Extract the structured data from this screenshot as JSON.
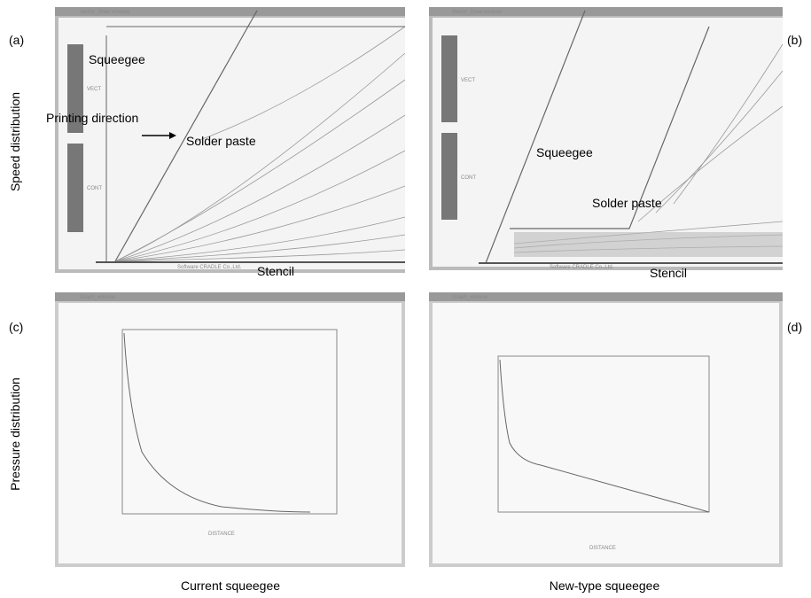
{
  "panels": [
    {
      "tag": "(a)",
      "window_title": "Vector_Draw window",
      "labels": [
        "Squeegee",
        "Printing direction",
        "Solder paste",
        "Stencil"
      ],
      "legend": [
        "VECT",
        "CONT"
      ],
      "footer": "Software CRADLE Co.,Ltd."
    },
    {
      "tag": "(b)",
      "window_title": "Vector_Draw window",
      "labels": [
        "Squeegee",
        "Solder paste",
        "Stencil"
      ],
      "legend": [
        "VECT",
        "CONT"
      ],
      "footer": "Software CRADLE Co.,Ltd."
    },
    {
      "tag": "(c)",
      "window_title": "Graph_window",
      "axis_label": "DISTANCE"
    },
    {
      "tag": "(d)",
      "window_title": "Graph_window",
      "axis_label": "DISTANCE"
    }
  ],
  "row_labels": [
    "Speed distribution",
    "Pressure distribution"
  ],
  "column_labels": [
    "Current squeegee",
    "New-type squeegee"
  ]
}
